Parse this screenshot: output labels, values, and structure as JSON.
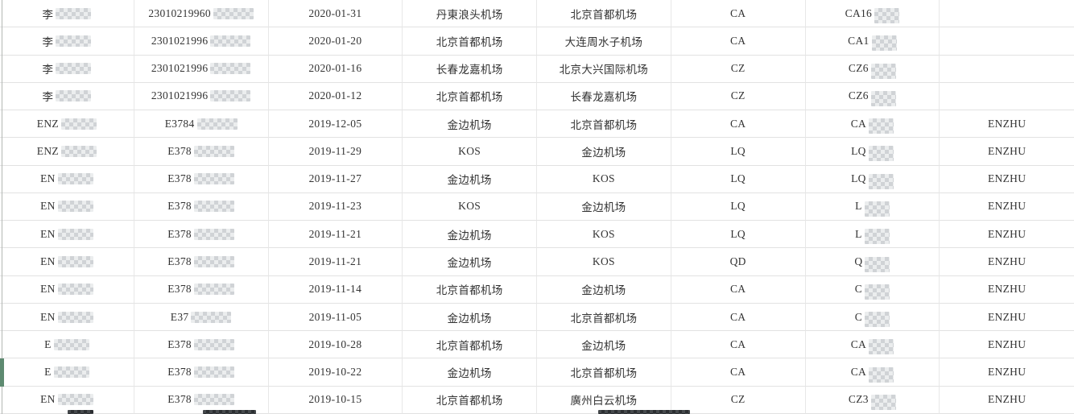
{
  "colors": {
    "row_indicator": "#5d8a70",
    "grid_line": "#e2e2e2",
    "text": "#333333"
  },
  "table": {
    "selected_row_index": 14,
    "column_keys": [
      "name",
      "id_no",
      "date",
      "from",
      "to",
      "airline",
      "flight_no",
      "remark"
    ],
    "rows": [
      {
        "name": {
          "text": "李",
          "redacted": true
        },
        "id_no": {
          "text": "23010219960",
          "redacted": true
        },
        "date": {
          "text": "2020-01-31"
        },
        "from": {
          "text": "丹東浪头机场"
        },
        "to": {
          "text": "北京首都机场"
        },
        "airline": {
          "text": "CA"
        },
        "flight_no": {
          "text": "CA16",
          "redacted": true
        },
        "remark": {
          "text": ""
        }
      },
      {
        "name": {
          "text": "李",
          "redacted": true
        },
        "id_no": {
          "text": "2301021996",
          "redacted": true
        },
        "date": {
          "text": "2020-01-20"
        },
        "from": {
          "text": "北京首都机场"
        },
        "to": {
          "text": "大连周水子机场"
        },
        "airline": {
          "text": "CA"
        },
        "flight_no": {
          "text": "CA1",
          "redacted": true
        },
        "remark": {
          "text": ""
        }
      },
      {
        "name": {
          "text": "李",
          "redacted": true
        },
        "id_no": {
          "text": "2301021996",
          "redacted": true
        },
        "date": {
          "text": "2020-01-16"
        },
        "from": {
          "text": "长春龙嘉机场"
        },
        "to": {
          "text": "北京大兴国际机场"
        },
        "airline": {
          "text": "CZ"
        },
        "flight_no": {
          "text": "CZ6",
          "redacted": true
        },
        "remark": {
          "text": ""
        }
      },
      {
        "name": {
          "text": "李",
          "redacted": true
        },
        "id_no": {
          "text": "2301021996",
          "redacted": true
        },
        "date": {
          "text": "2020-01-12"
        },
        "from": {
          "text": "北京首都机场"
        },
        "to": {
          "text": "长春龙嘉机场"
        },
        "airline": {
          "text": "CZ"
        },
        "flight_no": {
          "text": "CZ6",
          "redacted": true
        },
        "remark": {
          "text": ""
        }
      },
      {
        "name": {
          "text": "ENZ",
          "redacted": true
        },
        "id_no": {
          "text": "E3784",
          "redacted": true
        },
        "date": {
          "text": "2019-12-05"
        },
        "from": {
          "text": "金边机场"
        },
        "to": {
          "text": "北京首都机场"
        },
        "airline": {
          "text": "CA"
        },
        "flight_no": {
          "text": "CA",
          "redacted": true
        },
        "remark": {
          "text": "ENZHU"
        }
      },
      {
        "name": {
          "text": "ENZ",
          "redacted": true
        },
        "id_no": {
          "text": "E378",
          "redacted": true
        },
        "date": {
          "text": "2019-11-29"
        },
        "from": {
          "text": "KOS"
        },
        "to": {
          "text": "金边机场"
        },
        "airline": {
          "text": "LQ"
        },
        "flight_no": {
          "text": "LQ",
          "redacted": true
        },
        "remark": {
          "text": "ENZHU"
        }
      },
      {
        "name": {
          "text": "EN",
          "redacted": true
        },
        "id_no": {
          "text": "E378",
          "redacted": true
        },
        "date": {
          "text": "2019-11-27"
        },
        "from": {
          "text": "金边机场"
        },
        "to": {
          "text": "KOS"
        },
        "airline": {
          "text": "LQ"
        },
        "flight_no": {
          "text": "LQ",
          "redacted": true
        },
        "remark": {
          "text": "ENZHU"
        }
      },
      {
        "name": {
          "text": "EN",
          "redacted": true
        },
        "id_no": {
          "text": "E378",
          "redacted": true
        },
        "date": {
          "text": "2019-11-23"
        },
        "from": {
          "text": "KOS"
        },
        "to": {
          "text": "金边机场"
        },
        "airline": {
          "text": "LQ"
        },
        "flight_no": {
          "text": "L",
          "redacted": true
        },
        "remark": {
          "text": "ENZHU"
        }
      },
      {
        "name": {
          "text": "EN",
          "redacted": true
        },
        "id_no": {
          "text": "E378",
          "redacted": true
        },
        "date": {
          "text": "2019-11-21"
        },
        "from": {
          "text": "金边机场"
        },
        "to": {
          "text": "KOS"
        },
        "airline": {
          "text": "LQ"
        },
        "flight_no": {
          "text": "L",
          "redacted": true
        },
        "remark": {
          "text": "ENZHU"
        }
      },
      {
        "name": {
          "text": "EN",
          "redacted": true
        },
        "id_no": {
          "text": "E378",
          "redacted": true
        },
        "date": {
          "text": "2019-11-21"
        },
        "from": {
          "text": "金边机场"
        },
        "to": {
          "text": "KOS"
        },
        "airline": {
          "text": "QD"
        },
        "flight_no": {
          "text": "Q",
          "redacted": true
        },
        "remark": {
          "text": "ENZHU"
        }
      },
      {
        "name": {
          "text": "EN",
          "redacted": true
        },
        "id_no": {
          "text": "E378",
          "redacted": true
        },
        "date": {
          "text": "2019-11-14"
        },
        "from": {
          "text": "北京首都机场"
        },
        "to": {
          "text": "金边机场"
        },
        "airline": {
          "text": "CA"
        },
        "flight_no": {
          "text": "C",
          "redacted": true
        },
        "remark": {
          "text": "ENZHU"
        }
      },
      {
        "name": {
          "text": "EN",
          "redacted": true
        },
        "id_no": {
          "text": "E37",
          "redacted": true
        },
        "date": {
          "text": "2019-11-05"
        },
        "from": {
          "text": "金边机场"
        },
        "to": {
          "text": "北京首都机场"
        },
        "airline": {
          "text": "CA"
        },
        "flight_no": {
          "text": "C",
          "redacted": true
        },
        "remark": {
          "text": "ENZHU"
        }
      },
      {
        "name": {
          "text": "E",
          "redacted": true
        },
        "id_no": {
          "text": "E378",
          "redacted": true
        },
        "date": {
          "text": "2019-10-28"
        },
        "from": {
          "text": "北京首都机场"
        },
        "to": {
          "text": "金边机场"
        },
        "airline": {
          "text": "CA"
        },
        "flight_no": {
          "text": "CA",
          "redacted": true
        },
        "remark": {
          "text": "ENZHU"
        }
      },
      {
        "name": {
          "text": "E",
          "redacted": true
        },
        "id_no": {
          "text": "E378",
          "redacted": true
        },
        "date": {
          "text": "2019-10-22"
        },
        "from": {
          "text": "金边机场"
        },
        "to": {
          "text": "北京首都机场"
        },
        "airline": {
          "text": "CA"
        },
        "flight_no": {
          "text": "CA",
          "redacted": true
        },
        "remark": {
          "text": "ENZHU"
        }
      },
      {
        "name": {
          "text": "EN",
          "redacted": true
        },
        "id_no": {
          "text": "E378",
          "redacted": true
        },
        "date": {
          "text": "2019-10-15"
        },
        "from": {
          "text": "北京首都机场"
        },
        "to": {
          "text": "廣州白云机场"
        },
        "airline": {
          "text": "CZ"
        },
        "flight_no": {
          "text": "CZ3",
          "redacted": true
        },
        "remark": {
          "text": "ENZHU"
        }
      }
    ]
  }
}
